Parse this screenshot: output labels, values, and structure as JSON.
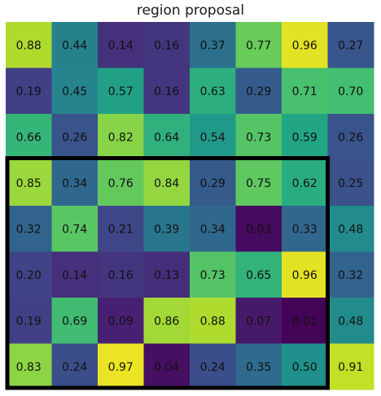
{
  "chart_data": {
    "type": "heatmap",
    "title": "region proposal",
    "colormap": "viridis",
    "vmin": 0.0,
    "vmax": 1.0,
    "values": [
      [
        0.88,
        0.44,
        0.14,
        0.16,
        0.37,
        0.77,
        0.96,
        0.27
      ],
      [
        0.19,
        0.45,
        0.57,
        0.16,
        0.63,
        0.29,
        0.71,
        0.7
      ],
      [
        0.66,
        0.26,
        0.82,
        0.64,
        0.54,
        0.73,
        0.59,
        0.26
      ],
      [
        0.85,
        0.34,
        0.76,
        0.84,
        0.29,
        0.75,
        0.62,
        0.25
      ],
      [
        0.32,
        0.74,
        0.21,
        0.39,
        0.34,
        0.03,
        0.33,
        0.48
      ],
      [
        0.2,
        0.14,
        0.16,
        0.13,
        0.73,
        0.65,
        0.96,
        0.32
      ],
      [
        0.19,
        0.69,
        0.09,
        0.86,
        0.88,
        0.07,
        0.01,
        0.48
      ],
      [
        0.83,
        0.24,
        0.97,
        0.04,
        0.24,
        0.35,
        0.5,
        0.91
      ]
    ],
    "labels": [
      [
        "0.88",
        "0.44",
        "0.14",
        "0.16",
        "0.37",
        "0.77",
        "0.96",
        "0.27"
      ],
      [
        "0.19",
        "0.45",
        "0.57",
        "0.16",
        "0.63",
        "0.29",
        "0.71",
        "0.70"
      ],
      [
        "0.66",
        "0.26",
        "0.82",
        "0.64",
        "0.54",
        "0.73",
        "0.59",
        "0.26"
      ],
      [
        "0.85",
        "0.34",
        "0.76",
        "0.84",
        "0.29",
        "0.75",
        "0.62",
        "0.25"
      ],
      [
        "0.32",
        "0.74",
        "0.21",
        "0.39",
        "0.34",
        "0.03",
        "0.33",
        "0.48"
      ],
      [
        "0.20",
        "0.14",
        "0.16",
        "0.13",
        "0.73",
        "0.65",
        "0.96",
        "0.32"
      ],
      [
        "0.19",
        "0.69",
        "0.09",
        "0.86",
        "0.88",
        "0.07",
        "0.01",
        "0.48"
      ],
      [
        "0.83",
        "0.24",
        "0.97",
        "0.04",
        "0.24",
        "0.35",
        "0.50",
        "0.91"
      ]
    ],
    "region": {
      "row_start": 3,
      "row_end": 7,
      "col_start": 0,
      "col_end": 6
    },
    "region_color": "#000000",
    "text_color": "#111111"
  }
}
